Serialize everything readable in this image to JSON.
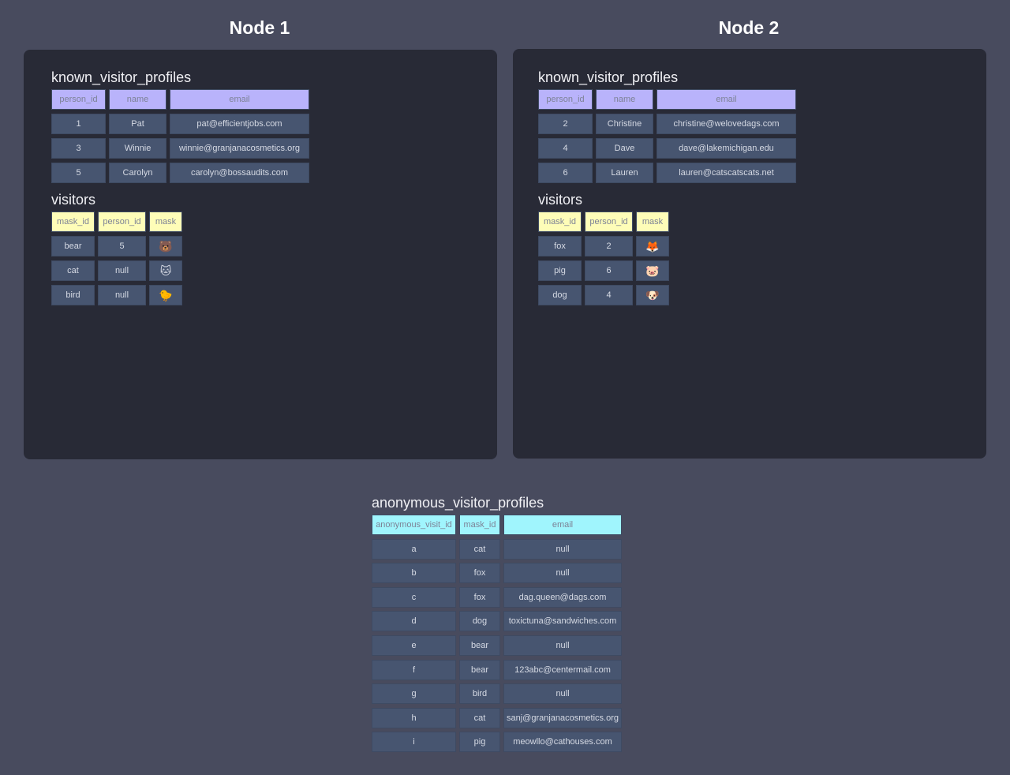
{
  "nodes": [
    {
      "title": "Node 1",
      "known_visitor_profiles": {
        "title": "known_visitor_profiles",
        "columns": [
          "person_id",
          "name",
          "email"
        ],
        "rows": [
          [
            "1",
            "Pat",
            "pat@efficientjobs.com"
          ],
          [
            "3",
            "Winnie",
            "winnie@granjanacosmetics.org"
          ],
          [
            "5",
            "Carolyn",
            "carolyn@bossaudits.com"
          ]
        ]
      },
      "visitors": {
        "title": "visitors",
        "columns": [
          "mask_id",
          "person_id",
          "mask"
        ],
        "rows": [
          [
            "bear",
            "5",
            "🐻"
          ],
          [
            "cat",
            "null",
            "🐱"
          ],
          [
            "bird",
            "null",
            "🐤"
          ]
        ]
      }
    },
    {
      "title": "Node 2",
      "known_visitor_profiles": {
        "title": "known_visitor_profiles",
        "columns": [
          "person_id",
          "name",
          "email"
        ],
        "rows": [
          [
            "2",
            "Christine",
            "christine@welovedags.com"
          ],
          [
            "4",
            "Dave",
            "dave@lakemichigan.edu"
          ],
          [
            "6",
            "Lauren",
            "lauren@catscatscats.net"
          ]
        ]
      },
      "visitors": {
        "title": "visitors",
        "columns": [
          "mask_id",
          "person_id",
          "mask"
        ],
        "rows": [
          [
            "fox",
            "2",
            "🦊"
          ],
          [
            "pig",
            "6",
            "🐷"
          ],
          [
            "dog",
            "4",
            "🐶"
          ]
        ]
      }
    }
  ],
  "anonymous_visitor_profiles": {
    "title": "anonymous_visitor_profiles",
    "columns": [
      "anonymous_visit_id",
      "mask_id",
      "email"
    ],
    "rows": [
      [
        "a",
        "cat",
        "null"
      ],
      [
        "b",
        "fox",
        "null"
      ],
      [
        "c",
        "fox",
        "dag.queen@dags.com"
      ],
      [
        "d",
        "dog",
        "toxictuna@sandwiches.com"
      ],
      [
        "e",
        "bear",
        "null"
      ],
      [
        "f",
        "bear",
        "123abc@centermail.com"
      ],
      [
        "g",
        "bird",
        "null"
      ],
      [
        "h",
        "cat",
        "sanj@granjanacosmetics.org"
      ],
      [
        "i",
        "pig",
        "meowllo@cathouses.com"
      ]
    ]
  },
  "colors": {
    "background": "#484b5e",
    "panel": "#282a36",
    "cell": "#475570",
    "header_known_visitor_profiles": "#b9b3fb",
    "header_visitors": "#fefdb8",
    "header_anonymous_visitor_profiles": "#a0f5fd"
  }
}
